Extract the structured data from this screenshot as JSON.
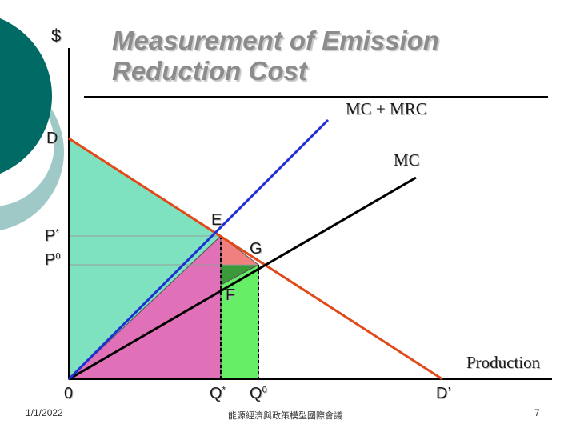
{
  "slide": {
    "title_line1": "Measurement of Emission",
    "title_line2": "Reduction Cost",
    "footer_date": "1/1/2022",
    "footer_center": "能源經濟與政策模型國際會議",
    "page_number": "7"
  },
  "diagram": {
    "y_axis_label": "$",
    "x_axis_label": "Production",
    "origin_label": "0",
    "demand_label": "D",
    "demand_end_label": "D’",
    "mc_label": "MC",
    "mc_mrc_label": "MC + MRC",
    "price_star": "P",
    "price_star_sup": "*",
    "price_zero": "P",
    "price_zero_sup": "0",
    "qty_star": "Q",
    "qty_star_sup": "*",
    "qty_zero": "Q",
    "qty_zero_sup": "0",
    "point_e": "E",
    "point_g": "G",
    "point_f": "F",
    "colors": {
      "demand_line": "#e04a1a",
      "mc_line": "#000000",
      "mc_mrc_line": "#1f2fd6",
      "consumer_area": "#7ee2c0",
      "pink_area": "#e070b8",
      "green_area": "#66ee66",
      "red_triangle": "#f08080",
      "dark_green_triangle": "#3a9a3a",
      "deco_teal": "#006b64",
      "deco_light": "#9fc9c6"
    }
  }
}
